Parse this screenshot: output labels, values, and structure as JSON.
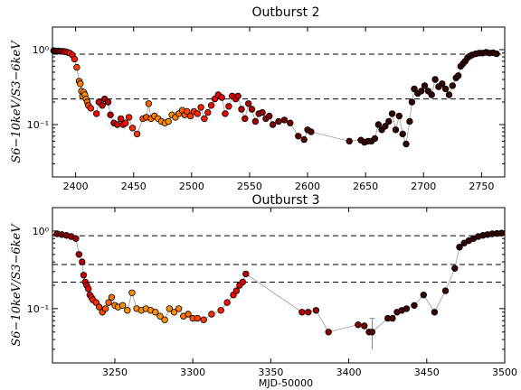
{
  "chart_data": [
    {
      "type": "scatter",
      "title": "Outburst 2",
      "xlabel": "",
      "ylabel": "S6−10keV/S3−6keV",
      "xlim": [
        2380,
        2770
      ],
      "ylim": [
        0.02,
        2.0
      ],
      "yscale": "log",
      "xticks": [
        "2400",
        "2450",
        "2500",
        "2550",
        "2600",
        "2650",
        "2700",
        "2750"
      ],
      "yticks": [
        "10⁰",
        "10⁻¹"
      ],
      "hlines": [
        0.87,
        0.22
      ],
      "x": [
        2381,
        2383,
        2385,
        2387,
        2389,
        2391,
        2393,
        2395,
        2397,
        2399,
        2401,
        2403,
        2404,
        2405,
        2406,
        2407,
        2408,
        2409,
        2410,
        2411,
        2413,
        2418,
        2420,
        2423,
        2425,
        2428,
        2430,
        2433,
        2436,
        2439,
        2441,
        2443,
        2446,
        2449,
        2453,
        2458,
        2461,
        2463,
        2465,
        2468,
        2471,
        2474,
        2477,
        2480,
        2483,
        2486,
        2489,
        2492,
        2494,
        2496,
        2499,
        2502,
        2505,
        2508,
        2511,
        2514,
        2517,
        2520,
        2523,
        2526,
        2529,
        2532,
        2535,
        2538,
        2540,
        2543,
        2546,
        2549,
        2552,
        2555,
        2558,
        2561,
        2564,
        2567,
        2570,
        2575,
        2580,
        2585,
        2592,
        2597,
        2600,
        2603,
        2636,
        2646,
        2649,
        2652,
        2655,
        2658,
        2661,
        2664,
        2667,
        2670,
        2673,
        2676,
        2679,
        2682,
        2685,
        2688,
        2690,
        2692,
        2695,
        2698,
        2701,
        2704,
        2707,
        2710,
        2713,
        2716,
        2719,
        2722,
        2725,
        2728,
        2730,
        2732,
        2734,
        2736,
        2738,
        2740,
        2742,
        2745,
        2748,
        2751,
        2754,
        2757,
        2760,
        2763
      ],
      "y": [
        0.97,
        0.96,
        0.96,
        0.95,
        0.95,
        0.94,
        0.92,
        0.9,
        0.85,
        0.75,
        0.58,
        0.38,
        0.35,
        0.28,
        0.24,
        0.27,
        0.25,
        0.22,
        0.2,
        0.18,
        0.165,
        0.14,
        0.2,
        0.18,
        0.22,
        0.2,
        0.135,
        0.105,
        0.1,
        0.12,
        0.1,
        0.105,
        0.125,
        0.09,
        0.075,
        0.12,
        0.125,
        0.19,
        0.12,
        0.13,
        0.12,
        0.11,
        0.105,
        0.11,
        0.135,
        0.125,
        0.14,
        0.155,
        0.135,
        0.15,
        0.13,
        0.15,
        0.14,
        0.17,
        0.12,
        0.145,
        0.18,
        0.22,
        0.25,
        0.23,
        0.14,
        0.175,
        0.24,
        0.22,
        0.24,
        0.16,
        0.12,
        0.19,
        0.16,
        0.11,
        0.14,
        0.145,
        0.12,
        0.13,
        0.1,
        0.11,
        0.115,
        0.105,
        0.07,
        0.063,
        0.085,
        0.08,
        0.06,
        0.062,
        0.058,
        0.06,
        0.06,
        0.065,
        0.1,
        0.085,
        0.095,
        0.11,
        0.14,
        0.085,
        0.13,
        0.075,
        0.055,
        0.11,
        0.2,
        0.3,
        0.26,
        0.28,
        0.33,
        0.28,
        0.25,
        0.4,
        0.32,
        0.35,
        0.3,
        0.25,
        0.33,
        0.42,
        0.45,
        0.6,
        0.65,
        0.7,
        0.78,
        0.82,
        0.85,
        0.88,
        0.9,
        0.9,
        0.92,
        0.9,
        0.91,
        0.88
      ],
      "color_index": [
        0,
        0.05,
        0.1,
        0.15,
        0.2,
        0.25,
        0.3,
        0.35,
        0.32,
        0.34,
        0.4,
        0.45,
        0.48,
        0.5,
        0.5,
        0.5,
        0.5,
        0.5,
        0.45,
        0.4,
        0.35,
        0.3,
        0.25,
        0.22,
        0.2,
        0.2,
        0.2,
        0.22,
        0.25,
        0.28,
        0.3,
        0.32,
        0.34,
        0.36,
        0.38,
        0.4,
        0.42,
        0.44,
        0.46,
        0.48,
        0.5,
        0.5,
        0.5,
        0.5,
        0.5,
        0.48,
        0.46,
        0.44,
        0.42,
        0.4,
        0.38,
        0.36,
        0.35,
        0.34,
        0.33,
        0.32,
        0.31,
        0.3,
        0.29,
        0.28,
        0.27,
        0.26,
        0.25,
        0.24,
        0.22,
        0.2,
        0.19,
        0.18,
        0.17,
        0.16,
        0.15,
        0.14,
        0.13,
        0.12,
        0.11,
        0.1,
        0.09,
        0.08,
        0.07,
        0.06,
        0.05,
        0.04,
        0.03,
        0.02,
        0.01,
        0,
        0,
        0,
        0,
        0,
        0,
        0,
        0,
        0,
        0,
        0,
        0,
        0,
        0,
        0,
        0,
        0,
        0,
        0,
        0,
        0,
        0,
        0,
        0,
        0,
        0,
        0,
        0,
        0,
        0,
        0,
        0,
        0,
        0,
        0,
        0,
        0,
        0,
        0,
        0,
        0
      ],
      "grid": false,
      "legend": "none"
    },
    {
      "type": "scatter",
      "title": "Outburst 3",
      "xlabel": "MJD-50000",
      "ylabel": "S6−10keV/S3−6keV",
      "xlim": [
        3210,
        3500
      ],
      "ylim": [
        0.02,
        2.0
      ],
      "yscale": "log",
      "xticks": [
        "3250",
        "3300",
        "3350",
        "3400",
        "3450",
        "3500"
      ],
      "yticks": [
        "10⁰",
        "10⁻¹"
      ],
      "hlines": [
        0.87,
        0.37,
        0.22
      ],
      "x": [
        3213,
        3216,
        3219,
        3222,
        3225,
        3227,
        3229,
        3230,
        3231,
        3232,
        3233,
        3234,
        3235,
        3236,
        3238,
        3240,
        3242,
        3244,
        3246,
        3248,
        3250,
        3252,
        3255,
        3258,
        3261,
        3264,
        3267,
        3270,
        3273,
        3276,
        3279,
        3282,
        3285,
        3288,
        3291,
        3294,
        3297,
        3300,
        3303,
        3307,
        3312,
        3318,
        3322,
        3326,
        3328,
        3330,
        3332,
        3334,
        3370,
        3374,
        3379,
        3387,
        3406,
        3410,
        3413,
        3415,
        3425,
        3428,
        3431,
        3434,
        3437,
        3442,
        3448,
        3455,
        3462,
        3468,
        3471,
        3474,
        3477,
        3480,
        3483,
        3486,
        3489,
        3492,
        3495,
        3498
      ],
      "y": [
        0.92,
        0.9,
        0.88,
        0.85,
        0.8,
        0.5,
        0.4,
        0.27,
        0.22,
        0.2,
        0.18,
        0.15,
        0.14,
        0.13,
        0.12,
        0.105,
        0.09,
        0.1,
        0.12,
        0.14,
        0.11,
        0.105,
        0.11,
        0.095,
        0.16,
        0.1,
        0.095,
        0.1,
        0.095,
        0.09,
        0.08,
        0.072,
        0.1,
        0.09,
        0.1,
        0.08,
        0.085,
        0.075,
        0.075,
        0.072,
        0.085,
        0.095,
        0.12,
        0.15,
        0.17,
        0.2,
        0.22,
        0.28,
        0.09,
        0.09,
        0.095,
        0.05,
        0.062,
        0.06,
        0.05,
        0.05,
        0.075,
        0.075,
        0.09,
        0.095,
        0.1,
        0.11,
        0.15,
        0.09,
        0.17,
        0.33,
        0.62,
        0.7,
        0.75,
        0.8,
        0.85,
        0.88,
        0.9,
        0.92,
        0.93,
        0.94
      ],
      "color_index": [
        0.1,
        0.1,
        0.12,
        0.14,
        0.16,
        0.18,
        0.2,
        0.22,
        0.24,
        0.26,
        0.28,
        0.3,
        0.32,
        0.34,
        0.36,
        0.38,
        0.4,
        0.42,
        0.44,
        0.46,
        0.48,
        0.5,
        0.5,
        0.5,
        0.5,
        0.5,
        0.5,
        0.5,
        0.5,
        0.5,
        0.5,
        0.5,
        0.5,
        0.5,
        0.48,
        0.46,
        0.44,
        0.42,
        0.4,
        0.38,
        0.36,
        0.34,
        0.32,
        0.3,
        0.28,
        0.26,
        0.24,
        0.22,
        0.2,
        0.18,
        0.16,
        0.14,
        0.12,
        0.1,
        0.08,
        0.06,
        0.05,
        0.04,
        0.03,
        0.02,
        0.01,
        0,
        0,
        0,
        0,
        0,
        0,
        0,
        0,
        0,
        0,
        0,
        0,
        0,
        0,
        0
      ],
      "error_bar": {
        "x": 3415,
        "low": 0.03,
        "high": 0.075
      },
      "grid": false,
      "legend": "none"
    }
  ]
}
